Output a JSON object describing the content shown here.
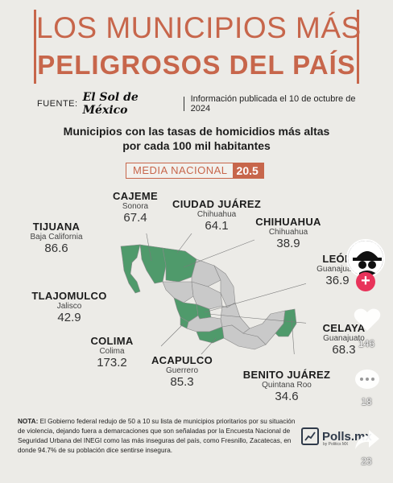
{
  "title": {
    "line1": "LOS MUNICIPIOS MÁS",
    "line2": "PELIGROSOS DEL PAÍS"
  },
  "source": {
    "label": "FUENTE:",
    "logo": "El Sol de México",
    "info": "Información publicada el 10 de octubre de 2024"
  },
  "subtitle": {
    "line1": "Municipios con las tasas de homicidios más altas",
    "line2": "por cada 100 mil habitantes"
  },
  "media_nacional": {
    "label": "MEDIA NACIONAL",
    "value": "20.5"
  },
  "municipios": {
    "cajeme": {
      "name": "CAJEME",
      "state": "Sonora",
      "value": "67.4"
    },
    "ciudad_juarez": {
      "name": "CIUDAD JUÁREZ",
      "state": "Chihuahua",
      "value": "64.1"
    },
    "chihuahua": {
      "name": "CHIHUAHUA",
      "state": "Chihuahua",
      "value": "38.9"
    },
    "tijuana": {
      "name": "TIJUANA",
      "state": "Baja California",
      "value": "86.6"
    },
    "leon": {
      "name": "LEÓN",
      "state": "Guanajuato",
      "value": "36.9"
    },
    "tlajomulco": {
      "name": "TLAJOMULCO",
      "state": "Jalisco",
      "value": "42.9"
    },
    "celaya": {
      "name": "CELAYA",
      "state": "Guanajuato",
      "value": "68.3"
    },
    "colima": {
      "name": "COLIMA",
      "state": "Colima",
      "value": "173.2"
    },
    "acapulco": {
      "name": "ACAPULCO",
      "state": "Guerrero",
      "value": "85.3"
    },
    "benito_juarez": {
      "name": "BENITO JUÁREZ",
      "state": "Quintana Roo",
      "value": "34.6"
    }
  },
  "note": {
    "label": "NOTA:",
    "text": "El Gobierno federal redujo de 50 a 10 su lista de municipios prioritarios por su situación de violencia, dejando fuera a demarcaciones que son señaladas por la Encuesta Nacional de Seguridad Urbana del INEGI como las más inseguras del país, como Fresnillo, Zacatecas, en donde 94.7% de su población dice sentirse insegura."
  },
  "brand": {
    "name": "Polls.mx",
    "sub": "by Politics MX"
  },
  "social": {
    "likes": "146",
    "comments": "18",
    "shares": "23"
  },
  "colors": {
    "accent": "#c7664b",
    "map_green": "#4f9a6b",
    "map_grey": "#c9c9c9",
    "background": "#ecebe7"
  }
}
